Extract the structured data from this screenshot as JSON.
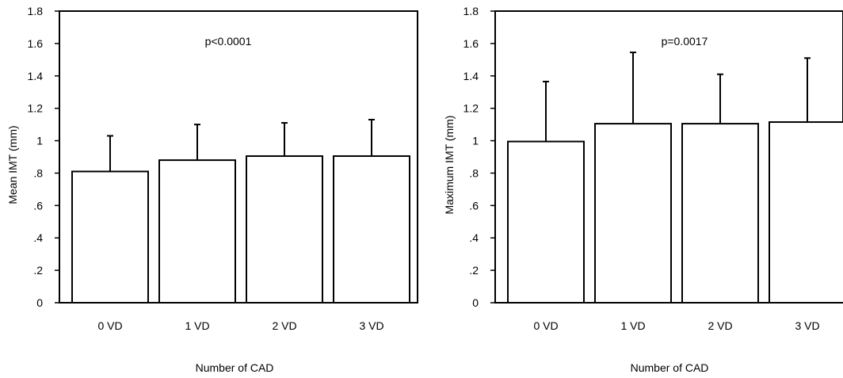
{
  "chart_data": [
    {
      "type": "bar",
      "categories": [
        "0 VD",
        "1 VD",
        "2 VD",
        "3 VD"
      ],
      "values": [
        0.81,
        0.88,
        0.905,
        0.905
      ],
      "error_bars": [
        0.22,
        0.22,
        0.205,
        0.225
      ],
      "xlabel": "Number of CAD",
      "ylabel": "Mean IMT (mm)",
      "annotation": "p<0.0001",
      "ylim": [
        0,
        1.8
      ],
      "yticks": [
        0,
        0.2,
        0.4,
        0.6,
        0.8,
        1,
        1.2,
        1.4,
        1.6,
        1.8
      ],
      "ytick_labels": [
        "0",
        ".2",
        ".4",
        ".6",
        ".8",
        "1",
        "1.2",
        "1.4",
        "1.6",
        "1.8"
      ],
      "grid": false
    },
    {
      "type": "bar",
      "categories": [
        "0 VD",
        "1 VD",
        "2 VD",
        "3 VD"
      ],
      "values": [
        0.995,
        1.105,
        1.105,
        1.115
      ],
      "error_bars": [
        0.37,
        0.44,
        0.305,
        0.395
      ],
      "xlabel": "Number of CAD",
      "ylabel": "Maximum IMT (mm)",
      "annotation": "p=0.0017",
      "ylim": [
        0,
        1.8
      ],
      "yticks": [
        0,
        0.2,
        0.4,
        0.6,
        0.8,
        1,
        1.2,
        1.4,
        1.6,
        1.8
      ],
      "ytick_labels": [
        "0",
        ".2",
        ".4",
        ".6",
        ".8",
        "1",
        "1.2",
        "1.4",
        "1.6",
        "1.8"
      ],
      "grid": false
    }
  ]
}
